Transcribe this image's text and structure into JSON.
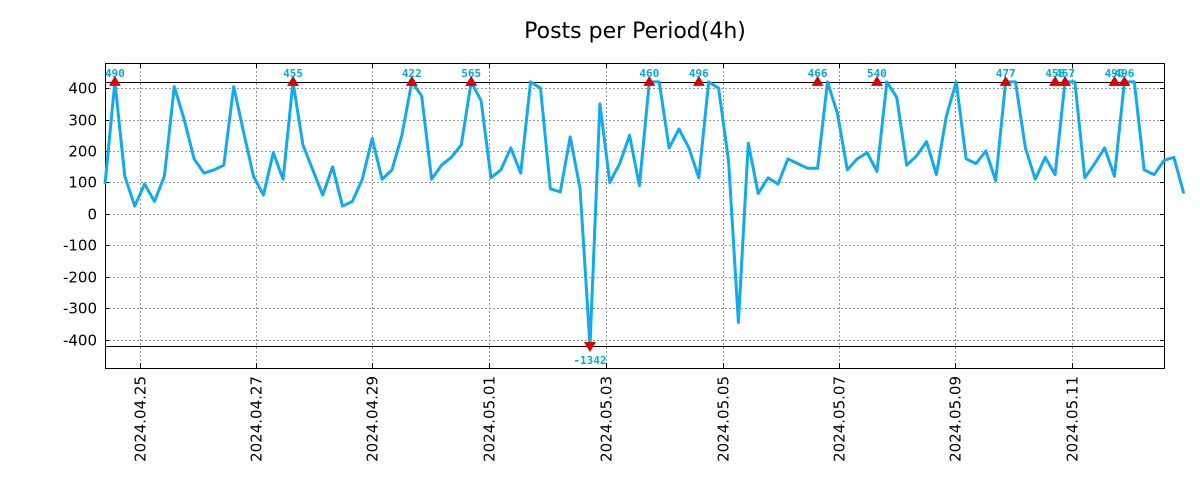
{
  "colors": {
    "series": "#11aaee",
    "marker": "#dd0000",
    "annotation": "#00aadd",
    "grid": "#999999",
    "threshold": "#000000"
  },
  "chart_data": {
    "type": "line",
    "title": "Posts per Period(4h)",
    "xlabel": "",
    "ylabel": "",
    "grid": true,
    "legend": "none",
    "ylim": [
      -490,
      480
    ],
    "xlim": [
      0,
      107
    ],
    "y_ticks": [
      400,
      300,
      200,
      100,
      0,
      -100,
      -200,
      -300,
      -400
    ],
    "y_tick_labels": [
      "400",
      "300",
      "200",
      "100",
      "0",
      "-100",
      "-200",
      "-300",
      "-400"
    ],
    "x_ticks": [
      {
        "x": 3.5,
        "label": "2024.04.25"
      },
      {
        "x": 15.3,
        "label": "2024.04.27"
      },
      {
        "x": 27.0,
        "label": "2024.04.29"
      },
      {
        "x": 38.8,
        "label": "2024.05.01"
      },
      {
        "x": 50.6,
        "label": "2024.05.03"
      },
      {
        "x": 62.4,
        "label": "2024.05.05"
      },
      {
        "x": 74.2,
        "label": "2024.05.07"
      },
      {
        "x": 85.9,
        "label": "2024.05.09"
      },
      {
        "x": 97.7,
        "label": "2024.05.11"
      }
    ],
    "thresholds": [
      420,
      -420
    ],
    "values": [
      95,
      420,
      120,
      25,
      95,
      40,
      120,
      405,
      300,
      175,
      130,
      140,
      155,
      405,
      260,
      120,
      60,
      195,
      110,
      420,
      220,
      140,
      60,
      150,
      25,
      40,
      110,
      240,
      110,
      140,
      250,
      420,
      375,
      110,
      155,
      180,
      220,
      420,
      360,
      115,
      140,
      210,
      130,
      420,
      400,
      80,
      70,
      245,
      80,
      -420,
      350,
      100,
      160,
      250,
      90,
      420,
      420,
      210,
      270,
      210,
      115,
      420,
      400,
      170,
      -345,
      225,
      65,
      115,
      95,
      175,
      160,
      145,
      145,
      420,
      320,
      140,
      175,
      195,
      135,
      420,
      370,
      155,
      185,
      230,
      125,
      310,
      420,
      175,
      160,
      200,
      105,
      420,
      420,
      210,
      110,
      180,
      125,
      420,
      420,
      115,
      160,
      210,
      120,
      420,
      420,
      140,
      125,
      170,
      180,
      65
    ],
    "annotations": [
      {
        "x": 1,
        "y": 420,
        "label": "490",
        "pos": "above"
      },
      {
        "x": 19,
        "y": 420,
        "label": "455",
        "pos": "above"
      },
      {
        "x": 31,
        "y": 420,
        "label": "422",
        "pos": "above"
      },
      {
        "x": 37,
        "y": 420,
        "label": "565",
        "pos": "above"
      },
      {
        "x": 55,
        "y": 420,
        "label": "460",
        "pos": "above"
      },
      {
        "x": 60,
        "y": 420,
        "label": "496",
        "pos": "above"
      },
      {
        "x": 72,
        "y": 420,
        "label": "466",
        "pos": "above"
      },
      {
        "x": 78,
        "y": 420,
        "label": "540",
        "pos": "above"
      },
      {
        "x": 91,
        "y": 420,
        "label": "477",
        "pos": "above"
      },
      {
        "x": 96,
        "y": 420,
        "label": "458",
        "pos": "above"
      },
      {
        "x": 97,
        "y": 420,
        "label": "467",
        "pos": "above"
      },
      {
        "x": 102,
        "y": 420,
        "label": "490",
        "pos": "above"
      },
      {
        "x": 103,
        "y": 420,
        "label": "496",
        "pos": "above"
      },
      {
        "x": 49,
        "y": -420,
        "label": "-1342",
        "pos": "below"
      }
    ]
  }
}
